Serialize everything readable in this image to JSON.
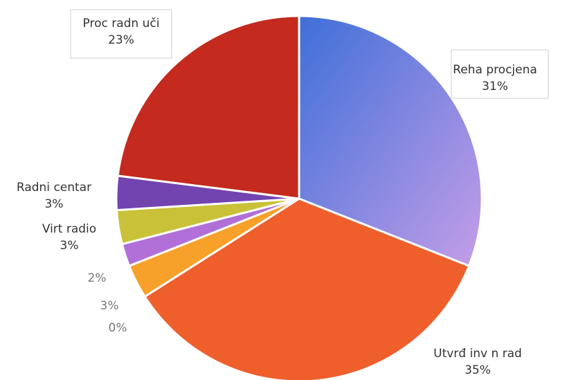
{
  "chart_data": {
    "type": "pie",
    "categories": [
      "Reha procjena",
      "Utvrđ inv n rad",
      null,
      null,
      null,
      "Virt radio",
      "Radni centar",
      "Proc radn uči"
    ],
    "values": [
      31,
      35,
      0,
      3,
      2,
      3,
      3,
      23
    ],
    "value_labels": [
      "31%",
      "35%",
      "0%",
      "3%",
      "2%",
      "3%",
      "3%",
      "23%"
    ],
    "colors": [
      "#9a86e0",
      "#ee5f2c",
      "#e8b040",
      "#f7a02a",
      "#b070d8",
      "#c9c238",
      "#7244b0",
      "#c42a1e"
    ],
    "start_angle": -90,
    "direction": "clockwise"
  }
}
